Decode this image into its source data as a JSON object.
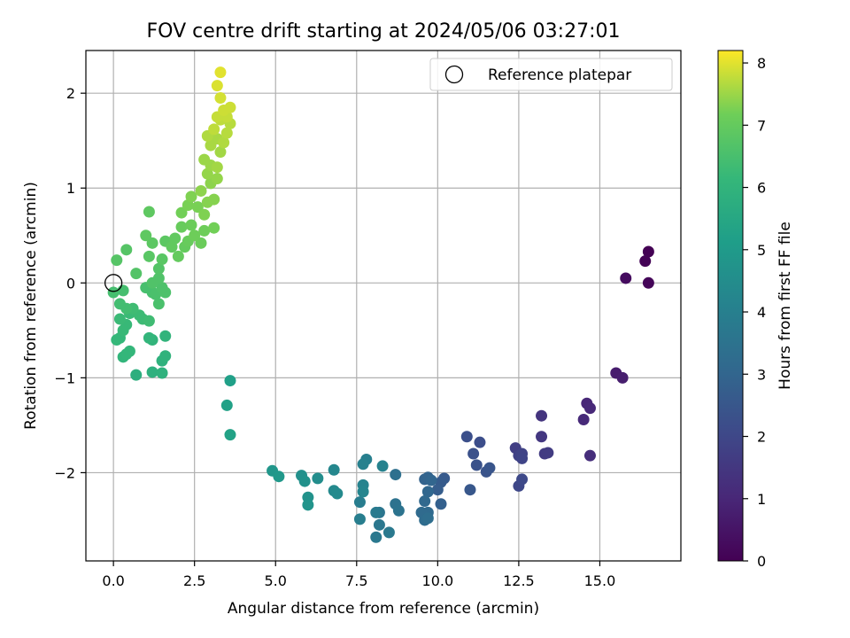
{
  "chart_data": {
    "type": "scatter",
    "title": "FOV centre drift starting at 2024/05/06 03:27:01",
    "xlabel": "Angular distance from reference (arcmin)",
    "ylabel": "Rotation from reference (arcmin)",
    "xlim": [
      -0.85,
      17.5
    ],
    "ylim": [
      -2.93,
      2.45
    ],
    "x_ticks": [
      0,
      2.5,
      5,
      7.5,
      10,
      12.5,
      15
    ],
    "x_tick_labels": [
      "0.0",
      "2.5",
      "5.0",
      "7.5",
      "10.0",
      "12.5",
      "15.0"
    ],
    "y_ticks": [
      -2,
      -1,
      0,
      1,
      2
    ],
    "y_tick_labels": [
      "−2",
      "−1",
      "0",
      "1",
      "2"
    ],
    "grid": true,
    "legend": {
      "placement": "top-right",
      "entries": [
        "Reference platepar"
      ]
    },
    "reference_point": {
      "x": 0.0,
      "y": 0.0,
      "marker": "open-circle"
    },
    "colorbar": {
      "label": "Hours from first FF file",
      "range": [
        0,
        8.2
      ],
      "ticks": [
        0,
        1,
        2,
        3,
        4,
        5,
        6,
        7,
        8
      ],
      "tick_labels": [
        "0",
        "1",
        "2",
        "3",
        "4",
        "5",
        "6",
        "7",
        "8"
      ],
      "colormap": "viridis"
    },
    "series": [
      {
        "points": [
          [
            16.5,
            0.33,
            0.0
          ],
          [
            16.4,
            0.23,
            0.05
          ],
          [
            16.5,
            0.0,
            0.1
          ],
          [
            15.8,
            0.05,
            0.3
          ],
          [
            15.5,
            -0.95,
            0.7
          ],
          [
            15.7,
            -1.0,
            0.75
          ],
          [
            14.6,
            -1.27,
            1.0
          ],
          [
            14.7,
            -1.32,
            1.05
          ],
          [
            14.5,
            -1.44,
            1.1
          ],
          [
            14.7,
            -1.82,
            1.2
          ],
          [
            13.2,
            -1.4,
            1.4
          ],
          [
            13.2,
            -1.62,
            1.5
          ],
          [
            13.3,
            -1.8,
            1.6
          ],
          [
            13.4,
            -1.79,
            1.65
          ],
          [
            12.4,
            -1.74,
            1.7
          ],
          [
            12.5,
            -1.82,
            1.8
          ],
          [
            12.6,
            -1.8,
            1.85
          ],
          [
            12.6,
            -1.85,
            1.9
          ],
          [
            12.5,
            -2.14,
            2.0
          ],
          [
            12.6,
            -2.07,
            2.05
          ],
          [
            11.3,
            -1.68,
            2.2
          ],
          [
            10.9,
            -1.62,
            2.25
          ],
          [
            11.1,
            -1.8,
            2.3
          ],
          [
            11.2,
            -1.92,
            2.35
          ],
          [
            11.5,
            -1.99,
            2.4
          ],
          [
            11.6,
            -1.95,
            2.45
          ],
          [
            11.0,
            -2.18,
            2.5
          ],
          [
            10.2,
            -2.06,
            2.6
          ],
          [
            10.1,
            -2.1,
            2.65
          ],
          [
            10.0,
            -2.18,
            2.7
          ],
          [
            10.1,
            -2.33,
            2.8
          ],
          [
            9.6,
            -2.07,
            2.9
          ],
          [
            9.7,
            -2.05,
            2.95
          ],
          [
            9.8,
            -2.08,
            3.0
          ],
          [
            9.7,
            -2.2,
            3.05
          ],
          [
            9.6,
            -2.3,
            3.1
          ],
          [
            9.7,
            -2.42,
            3.15
          ],
          [
            9.5,
            -2.42,
            3.2
          ],
          [
            9.6,
            -2.5,
            3.25
          ],
          [
            9.7,
            -2.48,
            3.3
          ],
          [
            8.7,
            -2.02,
            3.4
          ],
          [
            8.7,
            -2.33,
            3.45
          ],
          [
            8.8,
            -2.4,
            3.5
          ],
          [
            8.2,
            -2.42,
            3.6
          ],
          [
            8.2,
            -2.55,
            3.65
          ],
          [
            8.1,
            -2.68,
            3.7
          ],
          [
            8.5,
            -2.63,
            3.75
          ],
          [
            8.1,
            -2.42,
            3.8
          ],
          [
            7.6,
            -2.31,
            3.9
          ],
          [
            7.6,
            -2.49,
            3.95
          ],
          [
            7.8,
            -1.86,
            4.0
          ],
          [
            7.7,
            -1.91,
            4.05
          ],
          [
            8.3,
            -1.93,
            4.1
          ],
          [
            7.7,
            -2.13,
            4.15
          ],
          [
            7.7,
            -2.2,
            4.2
          ],
          [
            6.8,
            -1.97,
            4.3
          ],
          [
            6.8,
            -2.19,
            4.35
          ],
          [
            6.9,
            -2.22,
            4.4
          ],
          [
            6.3,
            -2.06,
            4.5
          ],
          [
            5.8,
            -2.03,
            4.6
          ],
          [
            5.9,
            -2.09,
            4.65
          ],
          [
            6.0,
            -2.26,
            4.7
          ],
          [
            6.0,
            -2.34,
            4.75
          ],
          [
            4.9,
            -1.98,
            4.85
          ],
          [
            5.1,
            -2.04,
            4.9
          ],
          [
            3.6,
            -1.03,
            5.2
          ],
          [
            3.5,
            -1.29,
            5.25
          ],
          [
            3.6,
            -1.6,
            5.3
          ],
          [
            0.7,
            -0.97,
            5.8
          ],
          [
            1.2,
            -0.94,
            5.85
          ],
          [
            1.5,
            -0.95,
            5.9
          ],
          [
            1.5,
            -0.82,
            5.9
          ],
          [
            1.6,
            -0.77,
            5.95
          ],
          [
            1.2,
            -0.6,
            6.0
          ],
          [
            1.6,
            -0.56,
            6.0
          ],
          [
            1.1,
            -0.58,
            6.05
          ],
          [
            0.3,
            -0.78,
            6.05
          ],
          [
            0.4,
            -0.75,
            6.1
          ],
          [
            0.5,
            -0.72,
            6.1
          ],
          [
            0.1,
            -0.6,
            6.15
          ],
          [
            0.2,
            -0.58,
            6.15
          ],
          [
            0.3,
            -0.5,
            6.2
          ],
          [
            0.4,
            -0.44,
            6.2
          ],
          [
            0.2,
            -0.38,
            6.25
          ],
          [
            0.5,
            -0.32,
            6.25
          ],
          [
            0.8,
            -0.34,
            6.3
          ],
          [
            0.9,
            -0.38,
            6.3
          ],
          [
            1.1,
            -0.4,
            6.35
          ],
          [
            0.6,
            -0.27,
            6.35
          ],
          [
            0.4,
            -0.27,
            6.4
          ],
          [
            0.2,
            -0.22,
            6.4
          ],
          [
            0.0,
            -0.1,
            6.45
          ],
          [
            0.3,
            -0.08,
            6.45
          ],
          [
            1.0,
            -0.05,
            6.5
          ],
          [
            1.2,
            -0.1,
            6.5
          ],
          [
            1.3,
            -0.12,
            6.55
          ],
          [
            1.4,
            -0.22,
            6.55
          ],
          [
            1.6,
            -0.1,
            6.6
          ],
          [
            1.5,
            -0.05,
            6.6
          ],
          [
            1.4,
            0.05,
            6.65
          ],
          [
            1.2,
            0.0,
            6.65
          ],
          [
            1.4,
            0.15,
            6.7
          ],
          [
            0.7,
            0.1,
            6.7
          ],
          [
            0.1,
            0.24,
            6.75
          ],
          [
            0.4,
            0.35,
            6.75
          ],
          [
            1.1,
            0.28,
            6.8
          ],
          [
            1.5,
            0.25,
            6.8
          ],
          [
            1.6,
            0.44,
            6.85
          ],
          [
            1.2,
            0.42,
            6.85
          ],
          [
            1.0,
            0.5,
            6.9
          ],
          [
            1.1,
            0.75,
            6.9
          ],
          [
            1.8,
            0.38,
            6.95
          ],
          [
            1.9,
            0.47,
            6.95
          ],
          [
            2.0,
            0.28,
            7.0
          ],
          [
            2.2,
            0.38,
            7.0
          ],
          [
            2.3,
            0.44,
            7.05
          ],
          [
            2.1,
            0.59,
            7.05
          ],
          [
            2.4,
            0.61,
            7.1
          ],
          [
            2.7,
            0.42,
            7.1
          ],
          [
            2.5,
            0.5,
            7.15
          ],
          [
            2.8,
            0.55,
            7.15
          ],
          [
            3.1,
            0.58,
            7.2
          ],
          [
            2.1,
            0.74,
            7.2
          ],
          [
            2.3,
            0.82,
            7.25
          ],
          [
            2.6,
            0.8,
            7.25
          ],
          [
            2.8,
            0.72,
            7.3
          ],
          [
            2.4,
            0.91,
            7.3
          ],
          [
            2.9,
            0.85,
            7.35
          ],
          [
            3.1,
            0.88,
            7.35
          ],
          [
            2.7,
            0.97,
            7.4
          ],
          [
            3.0,
            1.05,
            7.4
          ],
          [
            3.2,
            1.1,
            7.45
          ],
          [
            2.9,
            1.15,
            7.45
          ],
          [
            3.0,
            1.24,
            7.5
          ],
          [
            2.8,
            1.3,
            7.5
          ],
          [
            3.2,
            1.22,
            7.55
          ],
          [
            3.3,
            1.38,
            7.55
          ],
          [
            3.0,
            1.45,
            7.6
          ],
          [
            3.2,
            1.52,
            7.6
          ],
          [
            3.4,
            1.48,
            7.65
          ],
          [
            2.9,
            1.55,
            7.65
          ],
          [
            3.5,
            1.58,
            7.7
          ],
          [
            3.6,
            1.68,
            7.7
          ],
          [
            3.1,
            1.62,
            7.75
          ],
          [
            3.3,
            1.72,
            7.75
          ],
          [
            3.5,
            1.75,
            7.8
          ],
          [
            3.2,
            1.75,
            7.8
          ],
          [
            3.6,
            1.85,
            7.85
          ],
          [
            3.4,
            1.82,
            7.85
          ],
          [
            3.3,
            1.95,
            7.9
          ],
          [
            3.2,
            2.08,
            7.95
          ],
          [
            3.3,
            2.22,
            8.0
          ]
        ]
      }
    ]
  }
}
